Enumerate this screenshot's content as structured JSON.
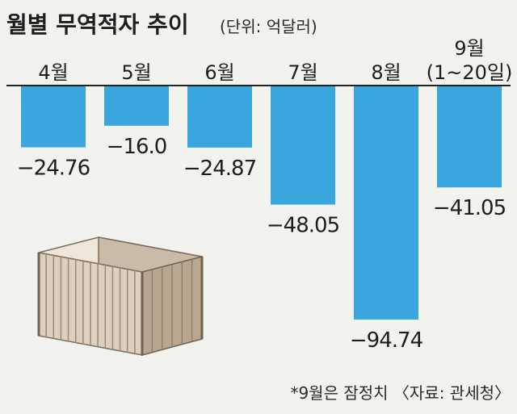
{
  "chart_data": {
    "type": "bar",
    "title": "월별 무역적자 추이",
    "unit": "(단위: 억달러)",
    "categories": [
      "4월",
      "5월",
      "6월",
      "7월",
      "8월",
      "9월\n(1~20일)"
    ],
    "values": [
      -24.76,
      -16.0,
      -24.87,
      -48.05,
      -94.74,
      -41.05
    ],
    "value_labels": [
      "−24.76",
      "−16.0",
      "−24.87",
      "−48.05",
      "−94.74",
      "−41.05"
    ],
    "footnote": "*9월은 잠정치 〈자료: 관세청〉",
    "bar_color": "#3aa6de",
    "ylim": [
      -100,
      0
    ],
    "grid": false,
    "legend": "none"
  }
}
